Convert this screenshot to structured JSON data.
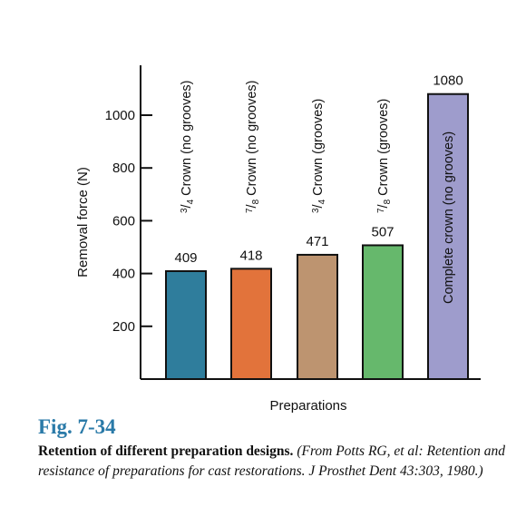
{
  "chart_data": {
    "type": "bar",
    "xlabel": "Preparations",
    "ylabel": "Removal force (N)",
    "ylim": [
      0,
      1150
    ],
    "yticks": [
      200,
      400,
      600,
      800,
      1000
    ],
    "categories": [
      {
        "num": "3",
        "den": "4",
        "rest": " Crown (no grooves)"
      },
      {
        "num": "7",
        "den": "8",
        "rest": " Crown (no grooves)"
      },
      {
        "num": "3",
        "den": "4",
        "rest": " Crown (grooves)"
      },
      {
        "num": "7",
        "den": "8",
        "rest": " Crown (grooves)"
      },
      {
        "num": "",
        "den": "",
        "rest": "Complete crown (no grooves)"
      }
    ],
    "values": [
      409,
      418,
      471,
      507,
      1080
    ],
    "value_labels": [
      "409",
      "418",
      "471",
      "507",
      "1080"
    ],
    "colors": [
      "#2f7d9c",
      "#e2733b",
      "#bd9470",
      "#66b86c",
      "#9e9ccc"
    ],
    "grid": false
  },
  "figure": {
    "number": "Fig. 7-34",
    "title": "Retention of different preparation designs.",
    "source": "(From Potts RG, et al: Retention and resistance of preparations for cast restorations. J Prosthet Dent 43:303, 1980.)"
  }
}
